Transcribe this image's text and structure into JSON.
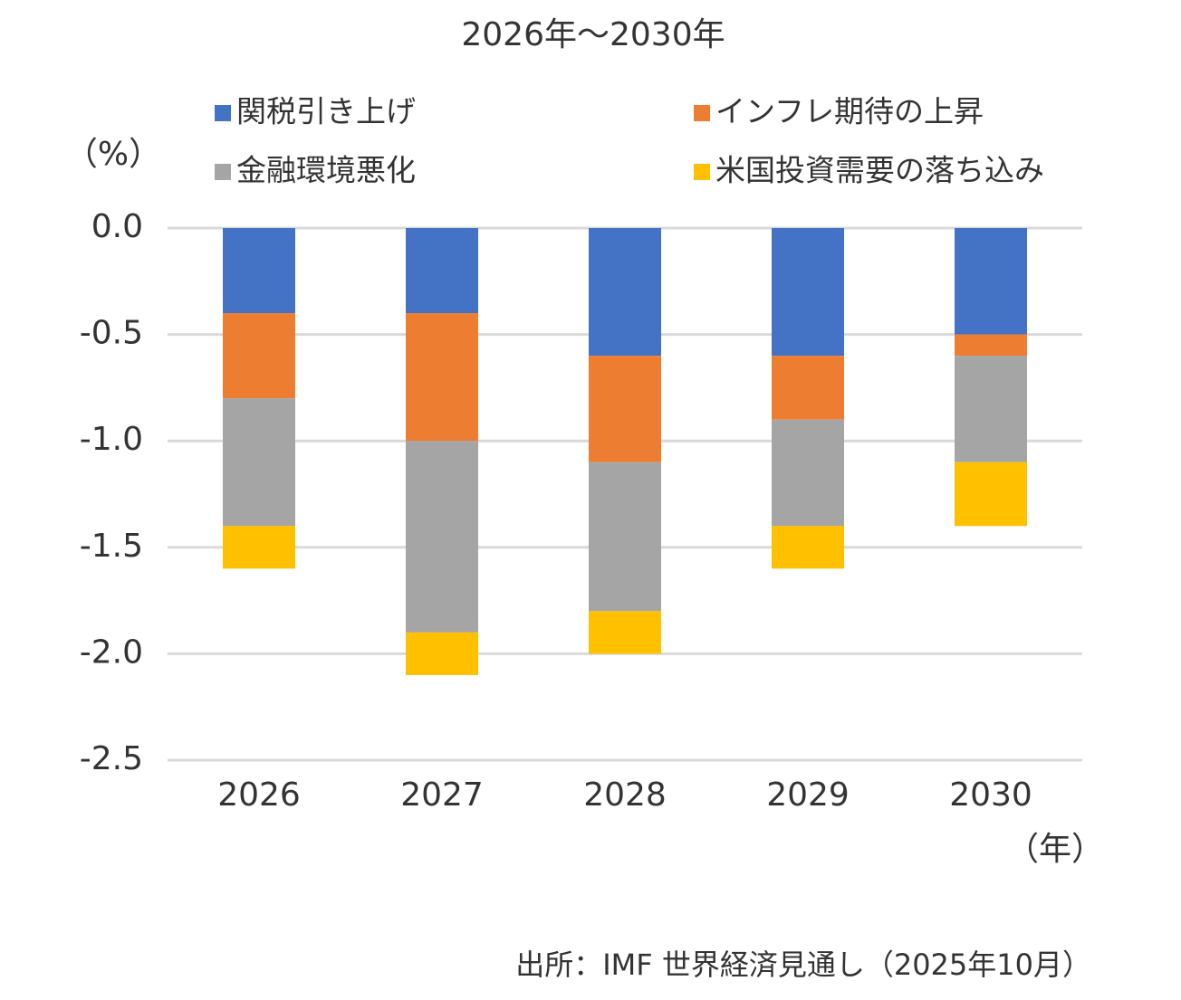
{
  "chart_data": {
    "type": "stacked_bar",
    "title": "2026年～2030年",
    "y_label": "（%）",
    "x_label": "（年）",
    "source": "出所：IMF 世界経済見通し（2025年10月）",
    "categories": [
      "2026",
      "2027",
      "2028",
      "2029",
      "2030"
    ],
    "series": [
      {
        "name": "関税引き上げ",
        "color": "#4472c4",
        "values": [
          -0.4,
          -0.4,
          -0.6,
          -0.6,
          -0.5
        ]
      },
      {
        "name": "インフレ期待の上昇",
        "color": "#ed7d31",
        "values": [
          -0.4,
          -0.6,
          -0.5,
          -0.3,
          -0.1
        ]
      },
      {
        "name": "金融環境悪化",
        "color": "#a5a5a5",
        "values": [
          -0.6,
          -0.9,
          -0.7,
          -0.5,
          -0.5
        ]
      },
      {
        "name": "米国投資需要の落ち込み",
        "color": "#ffc000",
        "values": [
          -0.2,
          -0.2,
          -0.2,
          -0.2,
          -0.3
        ]
      }
    ],
    "ylim": [
      -2.5,
      0
    ],
    "yticks": [
      {
        "value": 0,
        "label": "0.0"
      },
      -0.5,
      {
        "value": -1,
        "label": "-1.0"
      },
      -1.5,
      {
        "value": -2,
        "label": "-2.0"
      },
      -2.5
    ],
    "grid": true
  }
}
